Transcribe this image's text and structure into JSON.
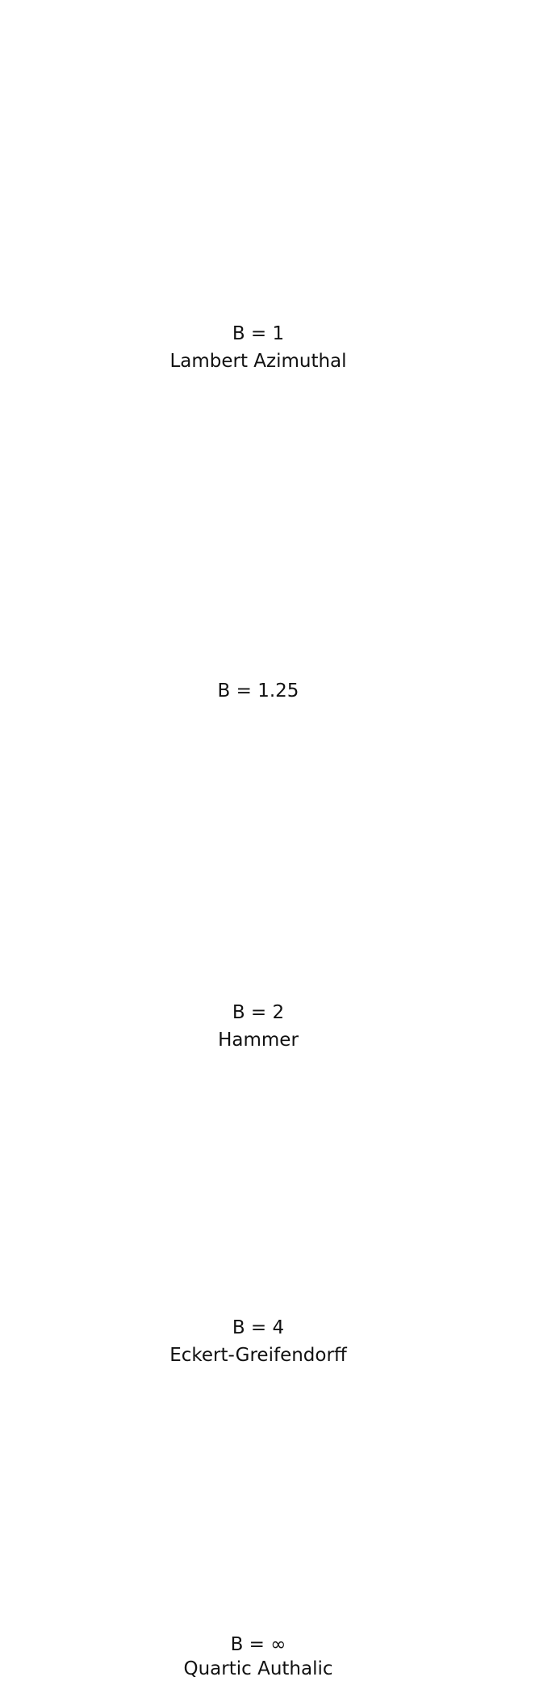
{
  "figure": {
    "panels": [
      {
        "b_label": "B = 1",
        "name": "Lambert Azimuthal",
        "B": 1
      },
      {
        "b_label": "B = 1.25",
        "name": "",
        "B": 1.25
      },
      {
        "b_label": "B = 2",
        "name": "Hammer",
        "B": 2
      },
      {
        "b_label": "B = 4",
        "name": "Eckert-Greifendorff",
        "B": 4
      },
      {
        "b_label": "B = ∞",
        "name": "Quartic Authalic",
        "B": "infinity"
      }
    ],
    "colors": {
      "land": "#767676",
      "graticule": "#111111",
      "background": "#ffffff"
    }
  }
}
